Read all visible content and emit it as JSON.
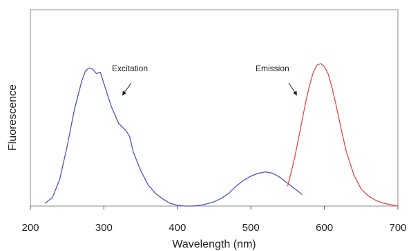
{
  "chart_data": {
    "type": "line",
    "xlabel": "Wavelength (nm)",
    "ylabel": "Fluorescence",
    "xlim": [
      200,
      700
    ],
    "ylim": [
      0,
      1.0
    ],
    "x_ticks": [
      200,
      300,
      400,
      500,
      600,
      700
    ],
    "y_ticks_labeled": false,
    "grid": false,
    "series": [
      {
        "color": "#4a56b8",
        "points": [
          [
            220,
            0.02
          ],
          [
            230,
            0.06
          ],
          [
            240,
            0.19
          ],
          [
            250,
            0.42
          ],
          [
            260,
            0.68
          ],
          [
            270,
            0.88
          ],
          [
            275,
            0.95
          ],
          [
            280,
            0.97
          ],
          [
            285,
            0.96
          ],
          [
            290,
            0.93
          ],
          [
            295,
            0.94
          ],
          [
            300,
            0.86
          ],
          [
            310,
            0.7
          ],
          [
            320,
            0.58
          ],
          [
            330,
            0.53
          ],
          [
            335,
            0.49
          ],
          [
            340,
            0.38
          ],
          [
            350,
            0.25
          ],
          [
            360,
            0.15
          ],
          [
            370,
            0.09
          ],
          [
            380,
            0.05
          ],
          [
            390,
            0.02
          ],
          [
            400,
            0.005
          ],
          [
            410,
            0.0
          ],
          [
            420,
            0.0
          ],
          [
            430,
            0.005
          ],
          [
            440,
            0.015
          ],
          [
            450,
            0.03
          ],
          [
            460,
            0.055
          ],
          [
            470,
            0.09
          ],
          [
            480,
            0.14
          ],
          [
            490,
            0.18
          ],
          [
            500,
            0.21
          ],
          [
            510,
            0.23
          ],
          [
            520,
            0.24
          ],
          [
            530,
            0.23
          ],
          [
            540,
            0.2
          ],
          [
            550,
            0.16
          ],
          [
            560,
            0.12
          ],
          [
            570,
            0.08
          ]
        ]
      },
      {
        "color": "#e04848",
        "points": [
          [
            550,
            0.14
          ],
          [
            555,
            0.24
          ],
          [
            560,
            0.35
          ],
          [
            565,
            0.48
          ],
          [
            570,
            0.61
          ],
          [
            575,
            0.74
          ],
          [
            580,
            0.85
          ],
          [
            585,
            0.94
          ],
          [
            590,
            0.99
          ],
          [
            595,
            1.0
          ],
          [
            600,
            0.98
          ],
          [
            605,
            0.93
          ],
          [
            610,
            0.84
          ],
          [
            615,
            0.73
          ],
          [
            620,
            0.61
          ],
          [
            625,
            0.49
          ],
          [
            630,
            0.38
          ],
          [
            640,
            0.22
          ],
          [
            650,
            0.12
          ],
          [
            660,
            0.07
          ],
          [
            670,
            0.04
          ],
          [
            680,
            0.02
          ],
          [
            690,
            0.01
          ],
          [
            700,
            0.0
          ]
        ]
      }
    ],
    "annotations": [
      {
        "text": "Excitation",
        "x": 320,
        "y": 0.98
      },
      {
        "text": "Emission",
        "x": 575,
        "y": 0.98
      }
    ]
  }
}
